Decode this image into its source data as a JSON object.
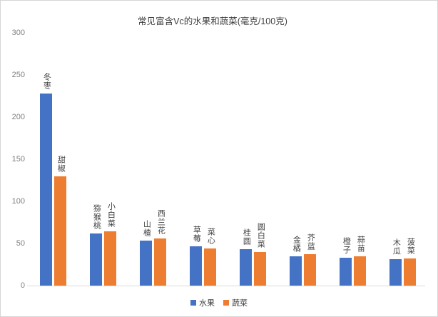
{
  "title": "常见富含Vc的水果和蔬菜(毫克/100克)",
  "legend": {
    "items": [
      {
        "label": "水果",
        "color": "#4472C4"
      },
      {
        "label": "蔬菜",
        "color": "#ED7D31"
      }
    ]
  },
  "chart_data": {
    "type": "bar",
    "title": "常见富含Vc的水果和蔬菜(毫克/100克)",
    "unit": "毫克/100克",
    "xlabel": "",
    "ylabel": "",
    "ylim": [
      0,
      300
    ],
    "yticks": [
      0,
      50,
      100,
      150,
      200,
      250,
      300
    ],
    "grid": false,
    "legend_position": "bottom",
    "series": [
      {
        "name": "水果",
        "color": "#4472C4",
        "points": [
          {
            "label": "冬枣",
            "value": 228
          },
          {
            "label": "猕猴桃",
            "value": 62
          },
          {
            "label": "山楂",
            "value": 53
          },
          {
            "label": "草莓",
            "value": 47
          },
          {
            "label": "桂圆",
            "value": 43
          },
          {
            "label": "金橘",
            "value": 35
          },
          {
            "label": "橙子",
            "value": 33
          },
          {
            "label": "木瓜",
            "value": 31
          }
        ]
      },
      {
        "name": "蔬菜",
        "color": "#ED7D31",
        "points": [
          {
            "label": "甜椒",
            "value": 130
          },
          {
            "label": "小白菜",
            "value": 64
          },
          {
            "label": "西兰花",
            "value": 56
          },
          {
            "label": "菜心",
            "value": 44
          },
          {
            "label": "圆白菜",
            "value": 40
          },
          {
            "label": "芥蓝",
            "value": 37
          },
          {
            "label": "蒜苗",
            "value": 35
          },
          {
            "label": "菠菜",
            "value": 32
          }
        ]
      }
    ]
  }
}
